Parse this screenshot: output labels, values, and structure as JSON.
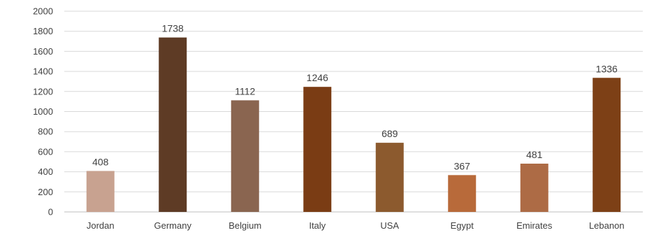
{
  "chart_data": {
    "type": "bar",
    "title": "",
    "xlabel": "",
    "ylabel": "",
    "categories": [
      "Jordan",
      "Germany",
      "Belgium",
      "Italy",
      "USA",
      "Egypt",
      "Emirates",
      "Lebanon"
    ],
    "values": [
      408,
      1738,
      1112,
      1246,
      689,
      367,
      481,
      1336
    ],
    "bar_colors": [
      "#c8a290",
      "#5e3b25",
      "#8a6550",
      "#7a3c14",
      "#8c5a2e",
      "#b86a3a",
      "#ad6b45",
      "#7d4016"
    ],
    "ylim": [
      0,
      2000
    ],
    "yticks": [
      0,
      200,
      400,
      600,
      800,
      1000,
      1200,
      1400,
      1600,
      1800,
      2000
    ],
    "grid": true,
    "legend": "none"
  }
}
